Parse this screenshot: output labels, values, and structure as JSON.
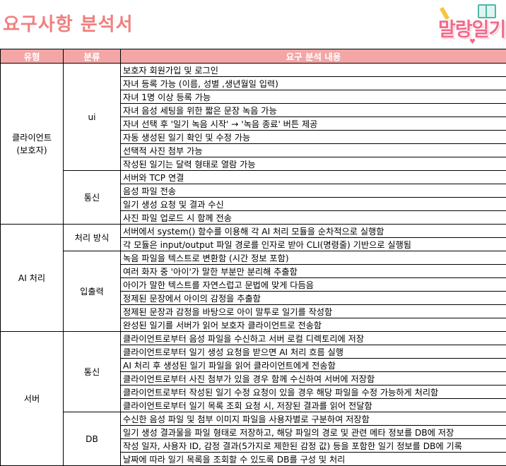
{
  "title": "요구사항 분석서",
  "logo_text": "말랑일기",
  "header": {
    "type": "유형",
    "category": "분류",
    "content": "요구 분석 내용"
  },
  "groups": [
    {
      "type": "클라이언트\n(보호자)",
      "subgroups": [
        {
          "category": "ui",
          "items": [
            "보호자 회원가입 및 로그인",
            "자녀 등록 가능 (이름, 성별 ,생년월일 입력)",
            "자녀 1명 이상 등록 가능",
            "자녀 음성 세팅을 위한 짧은 문장 녹음 가능",
            "자녀 선택 후 '일기 녹음 시작' → '녹음 종료' 버튼 제공",
            "자동 생성된 일기 확인 및 수정 가능",
            "선택적 사진 첨부 가능",
            "작성된 일기는 달력 형태로 열람 가능"
          ]
        },
        {
          "category": "통신",
          "items": [
            "서버와 TCP 연결",
            "음성 파일 전송",
            "일기 생성 요청 및 결과 수신",
            "사진 파일 업로드 시 함께 전송"
          ]
        }
      ]
    },
    {
      "type": "AI 처리",
      "subgroups": [
        {
          "category": "처리 방식",
          "items": [
            "서버에서 system() 함수를 이용해 각 AI 처리 모듈을 순차적으로 실행함",
            "각 모듈은 input/output 파일 경로를 인자로 받아 CLI(명령줄) 기반으로 실행됨"
          ]
        },
        {
          "category": "입출력",
          "items": [
            "녹음 파일을 텍스트로 변환함 (시간 정보 포함)",
            "여러 화자 중 '아이'가 말한 부분만 분리해 추출함",
            "아이가 말한 텍스트를 자연스럽고 문법에 맞게 다듬음",
            "정제된 문장에서 아이의 감정을 추출함",
            "정제된 문장과 감정을 바탕으로 아이 말투로 일기를 작성함",
            "완성된 일기를 서버가 읽어 보호자 클라이언트로 전송함"
          ]
        }
      ]
    },
    {
      "type": "서버",
      "subgroups": [
        {
          "category": "통신",
          "items": [
            "클라이언트로부터 음성 파일을 수신하고 서버 로컬 디렉토리에 저장",
            "클라이언트로부터 일기 생성 요청을 받으면 AI 처리 흐름 실행",
            "AI 처리 후 생성된 일기 파일을 읽어 클라이언트에게 전송함",
            "클라이언트로부터 사진 첨부가 있을 경우 함께 수신하여 서버에 저장함",
            "클라이언트로부터 작성된 일기 수정 요청이 있을 경우 해당 파일을 수정 가능하게 처리함",
            "클라이언트로부터 일기 목록 조회 요청 시, 저장된 결과를 읽어 전달함"
          ]
        },
        {
          "category": "DB",
          "items": [
            "수신한 음성 파일 및 첨부 이미지 파일을 사용자별로 구분하여 저장함",
            "일기 생성 결과물을 파일 형태로 저장하고, 해당 파일의 경로 및 관련 메타 정보를 DB에 저장",
            "작성 일자, 사용자 ID, 감정 결과(5가지로 제한된 감정 값) 등을 포함한 일기 정보를 DB에 기록",
            "날짜에 따라 일기 목록을 조회할 수 있도록 DB를 구성 및 처리"
          ]
        }
      ]
    }
  ]
}
